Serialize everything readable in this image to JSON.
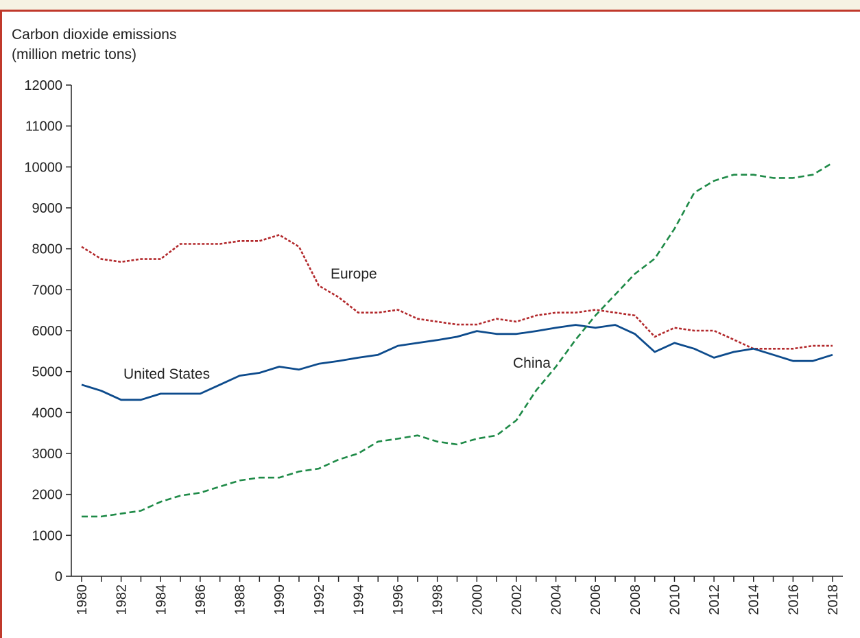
{
  "chart_data": {
    "type": "line",
    "ylabel": [
      "Carbon dioxide emissions",
      "(million metric tons)"
    ],
    "ylim": [
      0,
      12000
    ],
    "y_ticks": [
      0,
      1000,
      2000,
      3000,
      4000,
      5000,
      6000,
      7000,
      8000,
      9000,
      10000,
      11000,
      12000
    ],
    "xlim": [
      1980,
      2018
    ],
    "x_tick_labels": [
      "1980",
      "1982",
      "1984",
      "1986",
      "1988",
      "1990",
      "1992",
      "1994",
      "1996",
      "1998",
      "2000",
      "2002",
      "2004",
      "2006",
      "2008",
      "2010",
      "2012",
      "2014",
      "2016",
      "2018"
    ],
    "x": [
      1980,
      1981,
      1982,
      1983,
      1984,
      1985,
      1986,
      1987,
      1988,
      1989,
      1990,
      1991,
      1992,
      1993,
      1994,
      1995,
      1996,
      1997,
      1998,
      1999,
      2000,
      2001,
      2002,
      2003,
      2004,
      2005,
      2006,
      2007,
      2008,
      2009,
      2010,
      2011,
      2012,
      2013,
      2014,
      2015,
      2016,
      2017,
      2018
    ],
    "series": [
      {
        "name": "Europe",
        "color": "#b2282b",
        "style": "dotted",
        "values": [
          8050,
          7750,
          7680,
          7750,
          7750,
          8120,
          8120,
          8120,
          8190,
          8190,
          8340,
          8050,
          7100,
          6820,
          6440,
          6440,
          6510,
          6290,
          6220,
          6150,
          6150,
          6290,
          6220,
          6370,
          6440,
          6440,
          6510,
          6440,
          6370,
          5850,
          6070,
          6000,
          6000,
          5780,
          5560,
          5560,
          5560,
          5630,
          5630
        ]
      },
      {
        "name": "United States",
        "color": "#0d4b8c",
        "style": "solid",
        "values": [
          4680,
          4530,
          4310,
          4310,
          4460,
          4460,
          4460,
          4680,
          4900,
          4970,
          5120,
          5050,
          5190,
          5260,
          5340,
          5410,
          5630,
          5700,
          5770,
          5850,
          5990,
          5920,
          5920,
          5990,
          6070,
          6140,
          6070,
          6140,
          5920,
          5480,
          5700,
          5560,
          5340,
          5480,
          5560,
          5410,
          5260,
          5260,
          5410
        ]
      },
      {
        "name": "China",
        "color": "#1e8a47",
        "style": "dashed",
        "values": [
          1460,
          1460,
          1530,
          1600,
          1820,
          1970,
          2040,
          2190,
          2340,
          2410,
          2410,
          2560,
          2630,
          2850,
          3000,
          3290,
          3360,
          3440,
          3290,
          3220,
          3360,
          3440,
          3810,
          4540,
          5120,
          5780,
          6370,
          6880,
          7390,
          7760,
          8490,
          9370,
          9660,
          9810,
          9810,
          9730,
          9730,
          9810,
          10100
        ]
      }
    ]
  }
}
